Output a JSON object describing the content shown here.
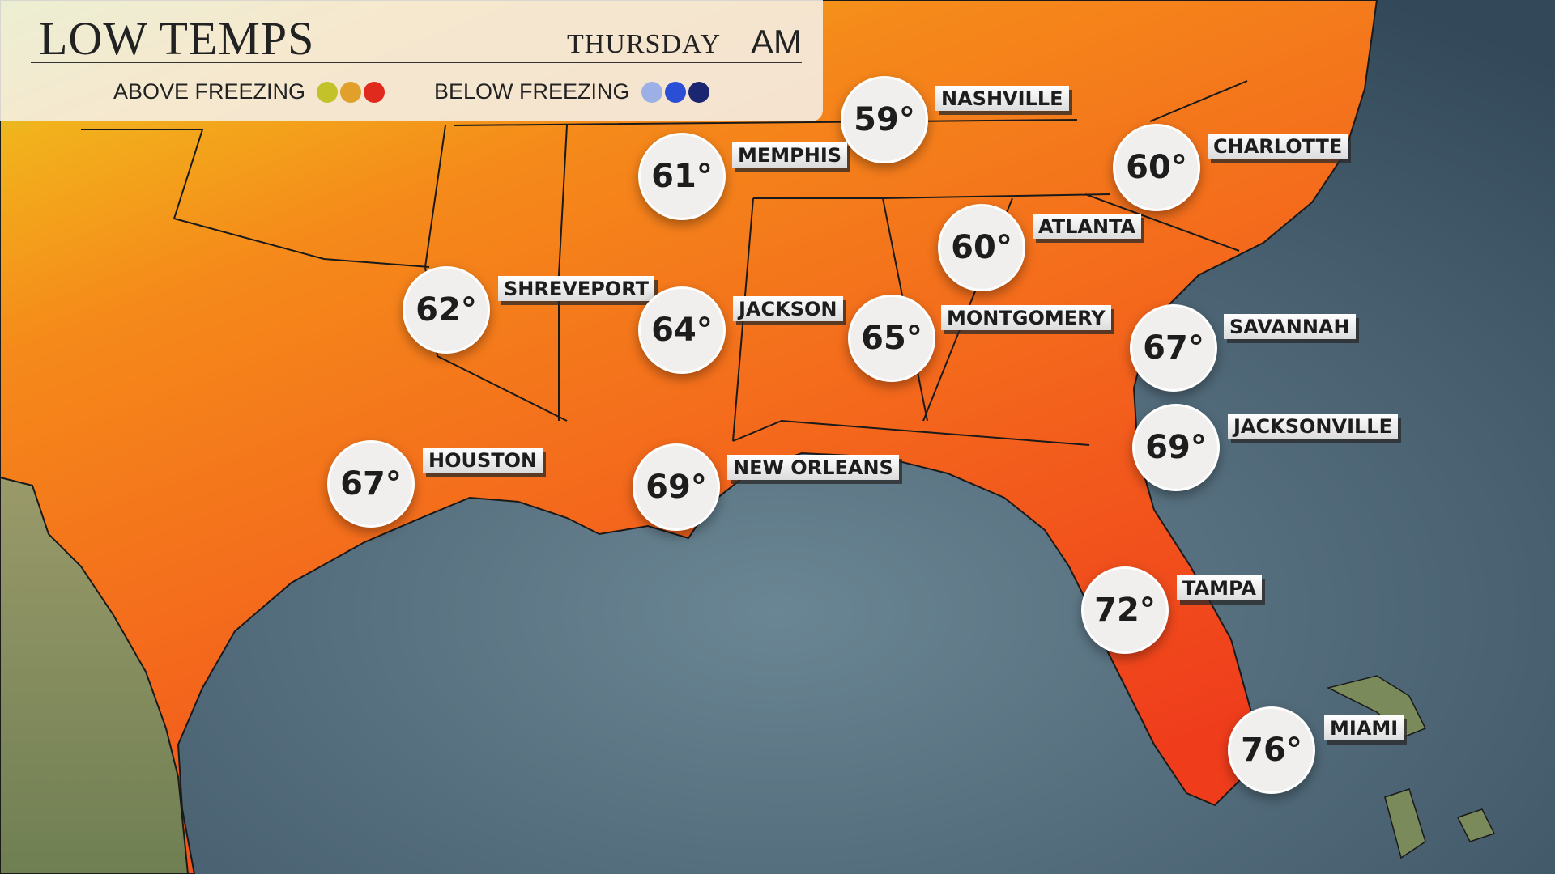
{
  "header": {
    "title": "LOW TEMPS",
    "day": "THURSDAY",
    "period": "AM"
  },
  "legend": [
    {
      "label": "ABOVE FREEZING",
      "colors": [
        "#c4c22a",
        "#e0a02a",
        "#e02a1e"
      ]
    },
    {
      "label": "BELOW FREEZING",
      "colors": [
        "#9db0e6",
        "#2a4fd6",
        "#1b2670"
      ]
    }
  ],
  "cities": [
    {
      "name": "NASHVILLE",
      "temp": "59°"
    },
    {
      "name": "MEMPHIS",
      "temp": "61°"
    },
    {
      "name": "CHARLOTTE",
      "temp": "60°"
    },
    {
      "name": "ATLANTA",
      "temp": "60°"
    },
    {
      "name": "SHREVEPORT",
      "temp": "62°"
    },
    {
      "name": "JACKSON",
      "temp": "64°"
    },
    {
      "name": "MONTGOMERY",
      "temp": "65°"
    },
    {
      "name": "SAVANNAH",
      "temp": "67°"
    },
    {
      "name": "HOUSTON",
      "temp": "67°"
    },
    {
      "name": "NEW ORLEANS",
      "temp": "69°"
    },
    {
      "name": "JACKSONVILLE",
      "temp": "69°"
    },
    {
      "name": "TAMPA",
      "temp": "72°"
    },
    {
      "name": "MIAMI",
      "temp": "76°"
    }
  ]
}
